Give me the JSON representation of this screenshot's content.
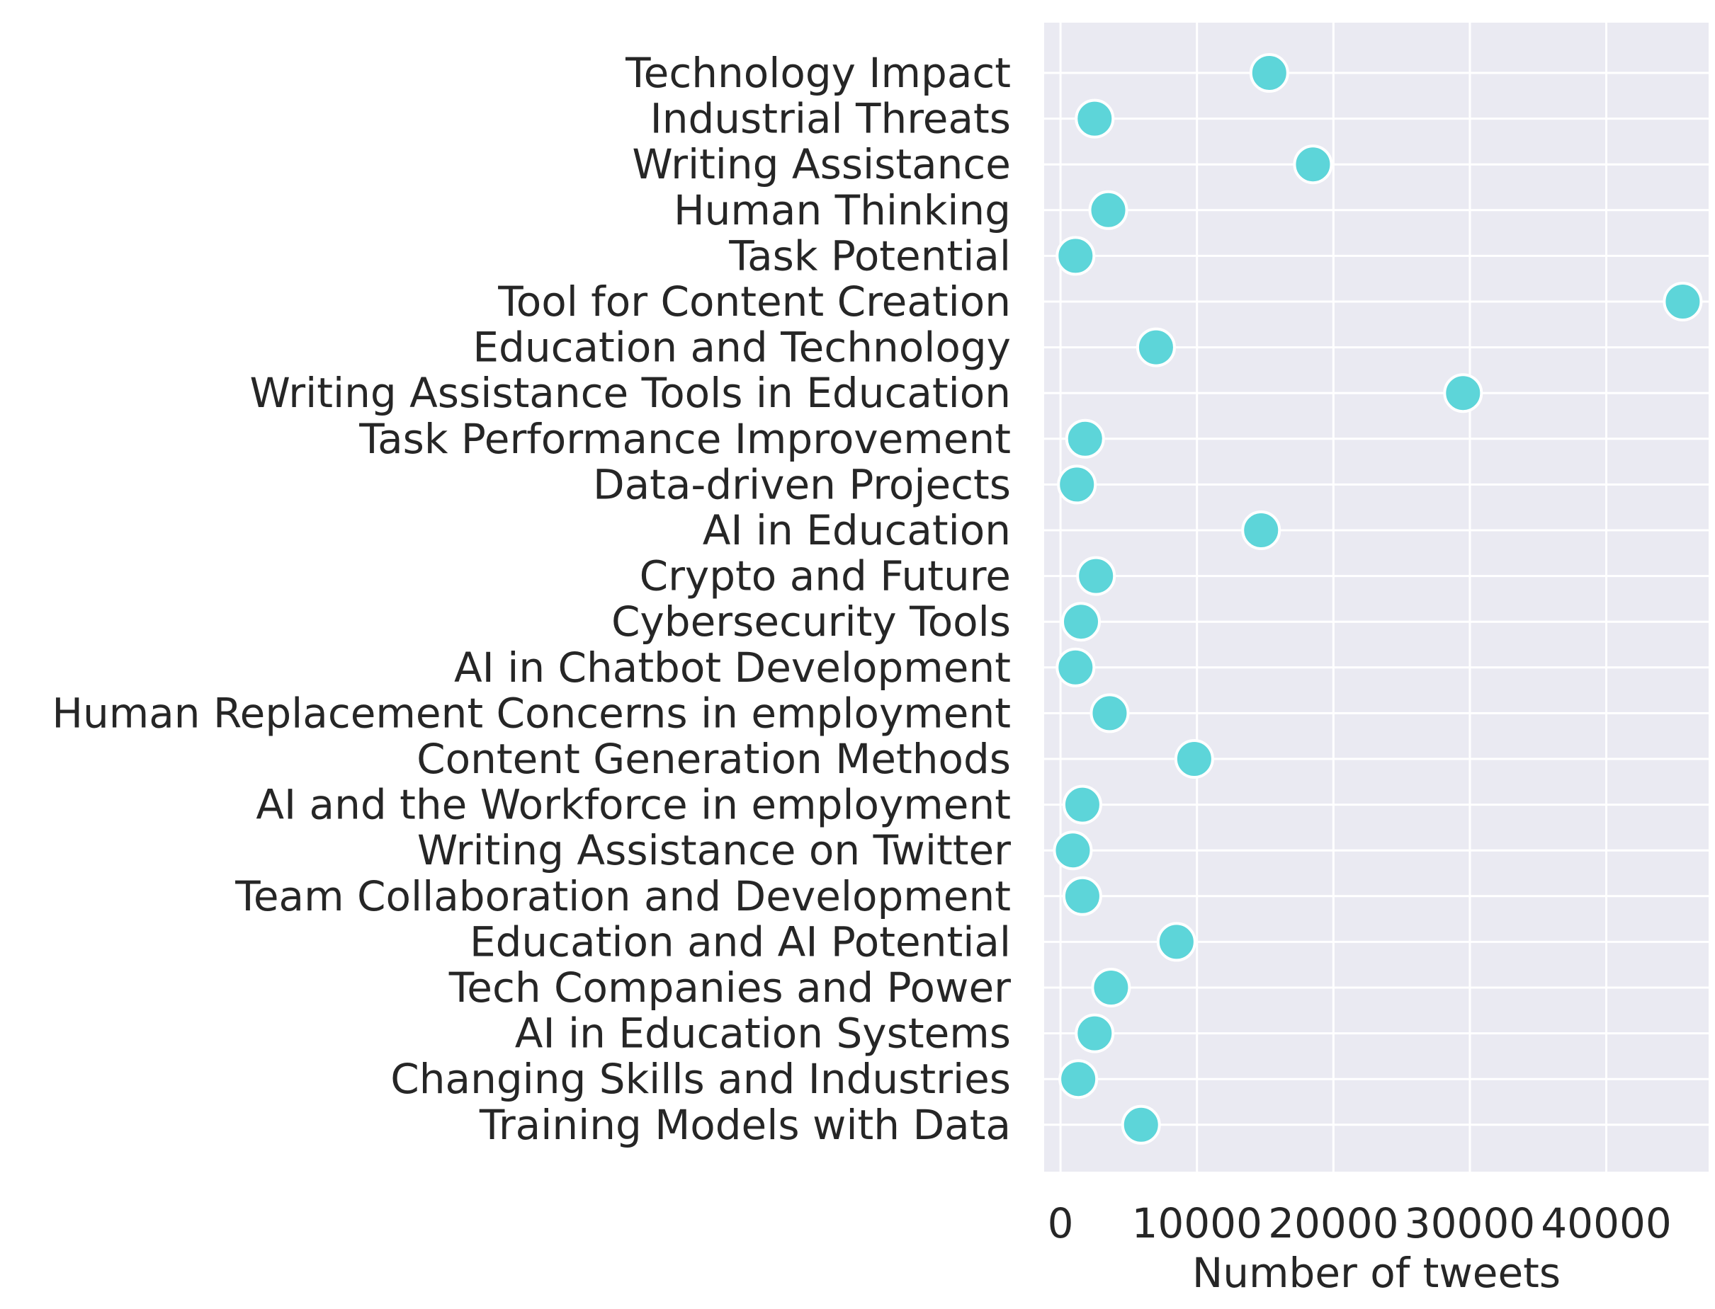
{
  "chart_data": {
    "type": "scatter",
    "title": "",
    "xlabel": "Number of tweets",
    "ylabel": "",
    "xlim": [
      -1200,
      47500
    ],
    "x_ticks": [
      0,
      10000,
      20000,
      30000,
      40000
    ],
    "x_tick_labels": [
      "0",
      "10000",
      "20000",
      "30000",
      "40000"
    ],
    "grid": true,
    "legend": "none",
    "colors": {
      "background": "#EAEAF2",
      "grid": "#FFFFFF",
      "marker": "#5DD5D9",
      "marker_edge": "#FFFFFF",
      "text": "#262626"
    },
    "categories": [
      "Technology Impact",
      "Industrial Threats",
      "Writing Assistance",
      "Human Thinking",
      "Task Potential",
      "Tool for Content Creation",
      "Education and Technology",
      "Writing Assistance Tools in Education",
      "Task Performance Improvement",
      "Data-driven Projects",
      "AI in Education",
      "Crypto and Future",
      "Cybersecurity Tools",
      "AI in Chatbot Development",
      "Human Replacement Concerns in employment",
      "Content Generation Methods",
      "AI and the Workforce in employment",
      "Writing Assistance on Twitter",
      "Team Collaboration and Development",
      "Education and AI Potential",
      "Tech Companies and Power",
      "AI in Education Systems",
      "Changing Skills and Industries",
      "Training Models with Data"
    ],
    "values": [
      15300,
      2500,
      18500,
      3500,
      1100,
      45600,
      7000,
      29500,
      1800,
      1200,
      14700,
      2600,
      1500,
      1100,
      3600,
      9800,
      1600,
      900,
      1600,
      8500,
      3700,
      2500,
      1300,
      5900
    ]
  }
}
